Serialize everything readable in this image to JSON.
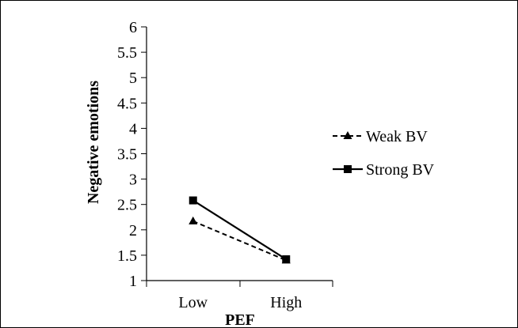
{
  "chart_data": {
    "type": "line",
    "xlabel": "PEF",
    "ylabel": "Negative emotions",
    "categories": [
      "Low",
      "High"
    ],
    "ylim": [
      1,
      6
    ],
    "yticks": [
      "1",
      "1.5",
      "2",
      "2.5",
      "3",
      "3.5",
      "4",
      "4.5",
      "5",
      "5.5",
      "6"
    ],
    "grid": false,
    "legend_position": "right",
    "series": [
      {
        "name": "Weak BV",
        "values": [
          2.17,
          1.4
        ],
        "line_style": "dashed",
        "marker": "triangle",
        "color": "#000000"
      },
      {
        "name": "Strong BV",
        "values": [
          2.58,
          1.42
        ],
        "line_style": "solid",
        "marker": "square",
        "color": "#000000"
      }
    ]
  }
}
